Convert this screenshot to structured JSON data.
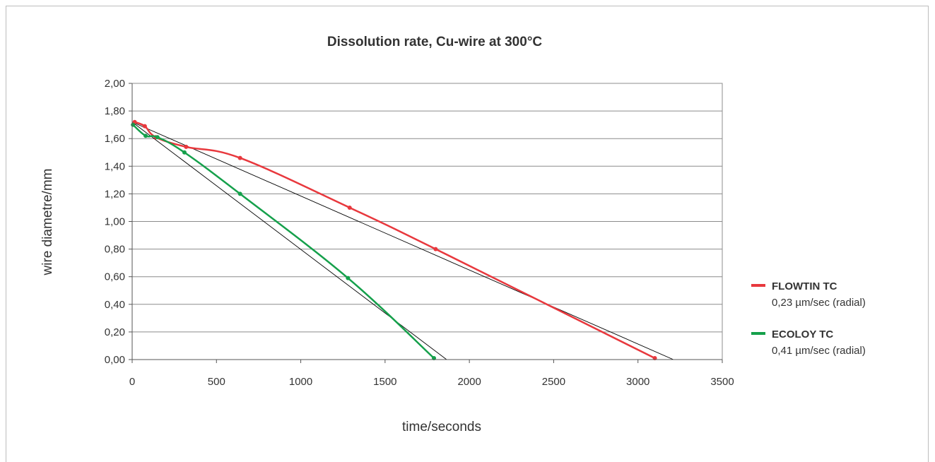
{
  "chart_data": {
    "type": "line",
    "title": "Dissolution rate, Cu-wire at 300°C",
    "xlabel": "time/seconds",
    "ylabel": "wire diametre/mm",
    "xlim": [
      0,
      3500
    ],
    "ylim": [
      0,
      2.0
    ],
    "x_ticks": [
      "0",
      "500",
      "1000",
      "1500",
      "2000",
      "2500",
      "3000",
      "3500"
    ],
    "y_ticks": [
      "0,00",
      "0,20",
      "0,40",
      "0,60",
      "0,80",
      "1,00",
      "1,20",
      "1,40",
      "1,60",
      "1,80",
      "2,00"
    ],
    "grid": "horizontal",
    "legend_position": "right",
    "series": [
      {
        "name": "FLOWTIN TC",
        "subtitle": "0,23 µm/sec (radial)",
        "color": "#e8383d",
        "x": [
          15,
          75,
          140,
          320,
          640,
          1290,
          1800,
          3100
        ],
        "y": [
          1.72,
          1.69,
          1.61,
          1.54,
          1.46,
          1.1,
          0.8,
          0.01
        ]
      },
      {
        "name": "ECOLOY TC",
        "subtitle": "0,41 µm/sec (radial)",
        "color": "#15a04b",
        "x": [
          5,
          80,
          150,
          310,
          640,
          1280,
          1790
        ],
        "y": [
          1.7,
          1.62,
          1.61,
          1.5,
          1.2,
          0.59,
          0.01
        ]
      }
    ],
    "trend_lines": [
      {
        "color": "#000000",
        "x": [
          0,
          3210
        ],
        "y": [
          1.72,
          0.0
        ]
      },
      {
        "color": "#000000",
        "x": [
          0,
          1865
        ],
        "y": [
          1.72,
          0.0
        ]
      }
    ]
  }
}
